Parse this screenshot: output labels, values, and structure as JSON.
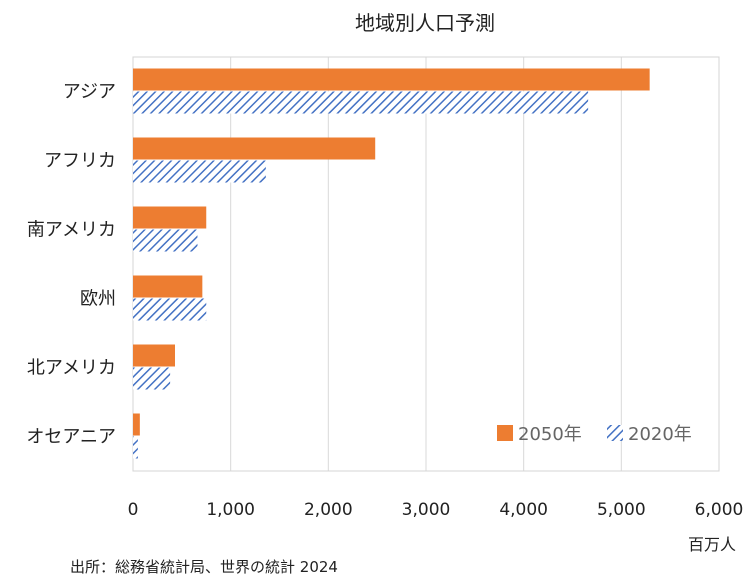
{
  "chart_data": {
    "type": "bar",
    "orientation": "horizontal",
    "title": "地域別人口予測",
    "categories": [
      "アジア",
      "アフリカ",
      "南アメリカ",
      "欧州",
      "北アメリカ",
      "オセアニア"
    ],
    "series": [
      {
        "name": "2050年",
        "values": [
          5290,
          2480,
          750,
          710,
          430,
          70
        ],
        "color": "#ED7D31",
        "pattern": "solid"
      },
      {
        "name": "2020年",
        "values": [
          4660,
          1360,
          660,
          750,
          380,
          50
        ],
        "color": "#4472C4",
        "pattern": "diagonal-hatch"
      }
    ],
    "xlim": [
      0,
      6000
    ],
    "xticks": [
      0,
      1000,
      2000,
      3000,
      4000,
      5000,
      6000
    ],
    "xtick_labels": [
      "0",
      "1,000",
      "2,000",
      "3,000",
      "4,000",
      "5,000",
      "6,000"
    ],
    "xlabel": "百万人",
    "grid": "vertical",
    "legend_position": "bottom-right"
  },
  "source_note": "出所：総務省統計局、世界の統計 2024"
}
